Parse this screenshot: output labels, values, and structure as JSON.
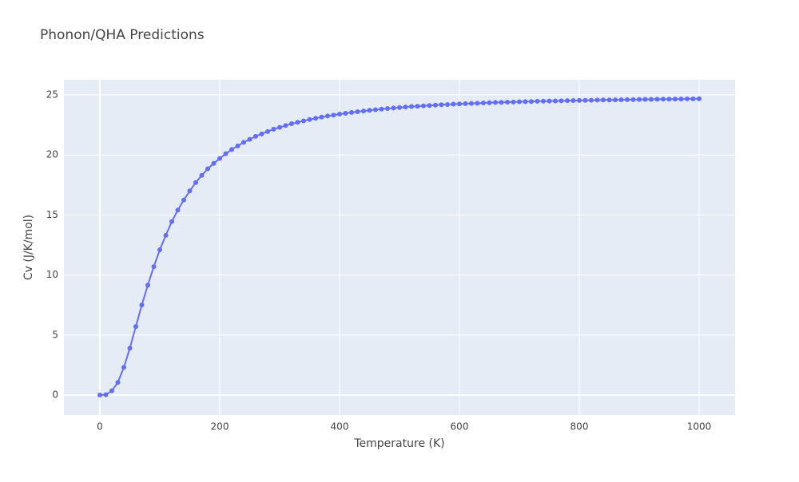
{
  "chart_data": {
    "type": "line",
    "title": "Phonon/QHA Predictions",
    "x_label": "Temperature (K)",
    "y_label": "Cv (J/K/mol)",
    "x": [
      0,
      10,
      20,
      30,
      40,
      50,
      60,
      70,
      80,
      90,
      100,
      110,
      120,
      130,
      140,
      150,
      160,
      170,
      180,
      190,
      200,
      210,
      220,
      230,
      240,
      250,
      260,
      270,
      280,
      290,
      300,
      310,
      320,
      330,
      340,
      350,
      360,
      370,
      380,
      390,
      400,
      410,
      420,
      430,
      440,
      450,
      460,
      470,
      480,
      490,
      500,
      510,
      520,
      530,
      540,
      550,
      560,
      570,
      580,
      590,
      600,
      610,
      620,
      630,
      640,
      650,
      660,
      670,
      680,
      690,
      700,
      710,
      720,
      730,
      740,
      750,
      760,
      770,
      780,
      790,
      800,
      810,
      820,
      830,
      840,
      850,
      860,
      870,
      880,
      890,
      900,
      910,
      920,
      930,
      940,
      950,
      960,
      970,
      980,
      990,
      1000
    ],
    "series": [
      {
        "color": "#636efa",
        "values": [
          0,
          0.03,
          0.35,
          1.05,
          2.3,
          3.9,
          5.7,
          7.5,
          9.15,
          10.7,
          12.1,
          13.3,
          14.45,
          15.4,
          16.25,
          17.0,
          17.7,
          18.3,
          18.85,
          19.3,
          19.7,
          20.1,
          20.45,
          20.75,
          21.05,
          21.3,
          21.55,
          21.75,
          21.95,
          22.15,
          22.3,
          22.45,
          22.6,
          22.72,
          22.84,
          22.95,
          23.05,
          23.15,
          23.24,
          23.32,
          23.4,
          23.47,
          23.54,
          23.6,
          23.66,
          23.72,
          23.77,
          23.82,
          23.87,
          23.91,
          23.95,
          23.99,
          24.03,
          24.06,
          24.09,
          24.12,
          24.15,
          24.18,
          24.2,
          24.23,
          24.25,
          24.27,
          24.29,
          24.31,
          24.33,
          24.35,
          24.37,
          24.38,
          24.4,
          24.41,
          24.43,
          24.44,
          24.45,
          24.47,
          24.48,
          24.49,
          24.5,
          24.51,
          24.52,
          24.53,
          24.54,
          24.55,
          24.56,
          24.57,
          24.58,
          24.58,
          24.59,
          24.6,
          24.61,
          24.61,
          24.62,
          24.63,
          24.63,
          24.64,
          24.65,
          24.65,
          24.66,
          24.66,
          24.67,
          24.67,
          24.68
        ]
      }
    ],
    "xlim": [
      -60,
      1060
    ],
    "ylim": [
      -1.66,
      26.26
    ],
    "xticks": [
      0,
      200,
      400,
      600,
      800,
      1000
    ],
    "yticks": [
      0,
      5,
      10,
      15,
      20,
      25
    ],
    "grid": true
  }
}
